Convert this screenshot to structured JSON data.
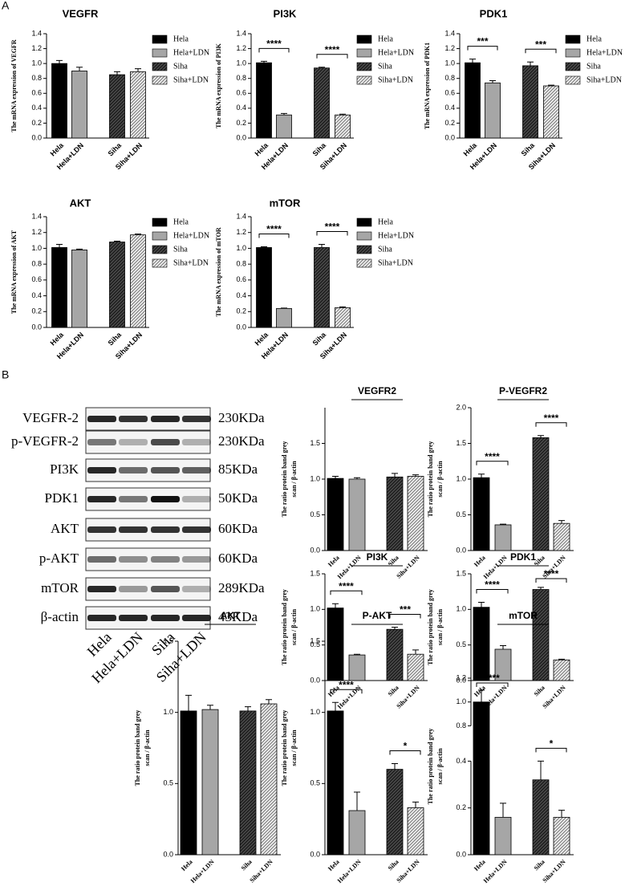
{
  "panels": [
    "A",
    "B"
  ],
  "styles": {
    "colors": [
      "#000000",
      "#a6a6a6",
      "#4a4a4a",
      "#f2f2f2"
    ],
    "hatched": [
      false,
      false,
      true,
      true
    ]
  },
  "blot": {
    "rows": [
      {
        "protein": "VEGFR-2",
        "size": "230KDa"
      },
      {
        "protein": "p-VEGFR-2",
        "size": "230KDa"
      },
      {
        "protein": "PI3K",
        "size": "85KDa"
      },
      {
        "protein": "PDK1",
        "size": "50KDa"
      },
      {
        "protein": "AKT",
        "size": "60KDa"
      },
      {
        "protein": "p-AKT",
        "size": "60KDa"
      },
      {
        "protein": "mTOR",
        "size": "289KDa"
      },
      {
        "protein": "β-actin",
        "size": "43KDa"
      }
    ],
    "lanes": [
      "Hela",
      "Hela+LDN",
      "Siha",
      "Siha+LDN"
    ]
  },
  "chart_data": [
    {
      "type": "bar",
      "title": "VEGFR",
      "ylabel": [
        "The mRNA expression of VEGFR"
      ],
      "categories": [
        "Hela",
        "Hela+LDN",
        "Siha",
        "Siha+LDN"
      ],
      "values": [
        1.0,
        0.9,
        0.85,
        0.89
      ],
      "errors": [
        0.04,
        0.05,
        0.04,
        0.04
      ],
      "ylim": [
        0,
        1.4
      ],
      "yticks": [
        {
          "value": 0,
          "label": "0.0"
        },
        0.2,
        0.4,
        0.6,
        0.8,
        {
          "value": 1,
          "label": "1.0"
        },
        1.2,
        1.4
      ],
      "legend": [
        "Hela",
        "Hela+LDN",
        "Siha",
        "Siha+LDN"
      ]
    },
    {
      "type": "bar",
      "title": "PI3K",
      "ylabel": [
        "The mRNA expression of PI3K"
      ],
      "categories": [
        "Hela",
        "Hela+LDN",
        "Siha",
        "Siha+LDN"
      ],
      "values": [
        1.01,
        0.31,
        0.94,
        0.31
      ],
      "errors": [
        0.02,
        0.02,
        0.01,
        0.01
      ],
      "ylim": [
        0,
        1.4
      ],
      "yticks": [
        {
          "value": 0,
          "label": "0.0"
        },
        0.2,
        0.4,
        0.6,
        0.8,
        {
          "value": 1,
          "label": "1.0"
        },
        1.2,
        1.4
      ],
      "legend": [
        "Hela",
        "Hela+LDN",
        "Siha",
        "Siha+LDN"
      ],
      "significance": [
        {
          "between": [
            0,
            1
          ],
          "label": "****"
        },
        {
          "between": [
            2,
            3
          ],
          "label": "****"
        }
      ]
    },
    {
      "type": "bar",
      "title": "PDK1",
      "ylabel": [
        "The mRNA expression of PDK1"
      ],
      "categories": [
        "Hela",
        "Hela+LDN",
        "Siha",
        "Siha+LDN"
      ],
      "values": [
        1.01,
        0.74,
        0.97,
        0.7
      ],
      "errors": [
        0.05,
        0.03,
        0.05,
        0.01
      ],
      "ylim": [
        0,
        1.4
      ],
      "yticks": [
        {
          "value": 0,
          "label": "0.0"
        },
        0.2,
        0.4,
        0.6,
        0.8,
        {
          "value": 1,
          "label": "1.0"
        },
        1.2,
        1.4
      ],
      "legend": [
        "Hela",
        "Hela+LDN",
        "Siha",
        "Siha+LDN"
      ],
      "significance": [
        {
          "between": [
            0,
            1
          ],
          "label": "***"
        },
        {
          "between": [
            2,
            3
          ],
          "label": "***"
        }
      ]
    },
    {
      "type": "bar",
      "title": "AKT",
      "ylabel": [
        "The mRNA expression of AKT"
      ],
      "categories": [
        "Hela",
        "Hela+LDN",
        "Siha",
        "Siha+LDN"
      ],
      "values": [
        1.01,
        0.98,
        1.08,
        1.17
      ],
      "errors": [
        0.04,
        0.01,
        0.01,
        0.01
      ],
      "ylim": [
        0,
        1.4
      ],
      "yticks": [
        {
          "value": 0,
          "label": "0.0"
        },
        0.2,
        0.4,
        0.6,
        0.8,
        {
          "value": 1,
          "label": "1.0"
        },
        1.2,
        1.4
      ],
      "legend": [
        "Hela",
        "Hela+LDN",
        "Siha",
        "Siha+LDN"
      ]
    },
    {
      "type": "bar",
      "title": "mTOR",
      "ylabel": [
        "The mRNA expression of mTOR"
      ],
      "categories": [
        "Hela",
        "Hela+LDN",
        "Siha",
        "Siha+LDN"
      ],
      "values": [
        1.01,
        0.24,
        1.01,
        0.25
      ],
      "errors": [
        0.01,
        0.005,
        0.04,
        0.01
      ],
      "ylim": [
        0,
        1.4
      ],
      "yticks": [
        {
          "value": 0,
          "label": "0.0"
        },
        0.2,
        0.4,
        0.6,
        0.8,
        {
          "value": 1,
          "label": "1.0"
        },
        1.2,
        1.4
      ],
      "legend": [
        "Hela",
        "Hela+LDN",
        "Siha",
        "Siha+LDN"
      ],
      "significance": [
        {
          "between": [
            0,
            1
          ],
          "label": "****"
        },
        {
          "between": [
            2,
            3
          ],
          "label": "****"
        }
      ]
    },
    {
      "type": "bar",
      "title": "VEGFR2",
      "ylabel": [
        "The ratio protein band grey",
        "scan / β-actin"
      ],
      "categories": [
        "Hela",
        "Hela+LDN",
        "Siha",
        "Siha+LDN"
      ],
      "values": [
        1.01,
        1.0,
        1.03,
        1.04
      ],
      "errors": [
        0.03,
        0.02,
        0.05,
        0.02
      ],
      "ylim": [
        0,
        2
      ],
      "yticks": [
        {
          "value": 0,
          "label": "0.0"
        },
        0.5,
        {
          "value": 1,
          "label": "1.0"
        },
        1.5
      ]
    },
    {
      "type": "bar",
      "title": "P-VEGFR2",
      "ylabel": [
        "The ratio protein band grey",
        "scan / β-actin"
      ],
      "categories": [
        "Hela",
        "Hela+LDN",
        "Siha",
        "Siha+LDN"
      ],
      "values": [
        1.02,
        0.36,
        1.58,
        0.38
      ],
      "errors": [
        0.05,
        0.01,
        0.03,
        0.04
      ],
      "ylim": [
        0,
        2
      ],
      "yticks": [
        {
          "value": 0,
          "label": "0.0"
        },
        0.5,
        {
          "value": 1,
          "label": "1.0"
        },
        1.5,
        {
          "value": 2,
          "label": "2.0"
        }
      ],
      "significance": [
        {
          "between": [
            0,
            1
          ],
          "label": "****"
        },
        {
          "between": [
            2,
            3
          ],
          "label": "****"
        }
      ]
    },
    {
      "type": "bar",
      "title": "PI3K",
      "ylabel": [
        "The ratio protein band grey",
        "scan / β-actin"
      ],
      "categories": [
        "Hela",
        "Hela+LDN",
        "Siha",
        "Siha+LDN"
      ],
      "values": [
        1.02,
        0.36,
        0.72,
        0.37
      ],
      "errors": [
        0.06,
        0.01,
        0.03,
        0.06
      ],
      "ylim": [
        0,
        1.5
      ],
      "yticks": [
        {
          "value": 0,
          "label": "0.0"
        },
        0.5,
        {
          "value": 1,
          "label": "1.0"
        },
        1.5
      ],
      "significance": [
        {
          "between": [
            0,
            1
          ],
          "label": "****"
        },
        {
          "between": [
            2,
            3
          ],
          "label": "***"
        }
      ]
    },
    {
      "type": "bar",
      "title": "PDK1",
      "ylabel": [
        "The ratio protein band grey",
        "scan / β-actin"
      ],
      "categories": [
        "Hela",
        "Hela+LDN",
        "Siha",
        "Siha+LDN"
      ],
      "values": [
        1.03,
        0.44,
        1.28,
        0.29
      ],
      "errors": [
        0.07,
        0.05,
        0.03,
        0.01
      ],
      "ylim": [
        0,
        1.5
      ],
      "yticks": [
        {
          "value": 0,
          "label": "0.0"
        },
        0.5,
        {
          "value": 1,
          "label": "1.0"
        },
        1.5
      ],
      "significance": [
        {
          "between": [
            0,
            1
          ],
          "label": "****"
        },
        {
          "between": [
            2,
            3
          ],
          "label": "****"
        }
      ]
    },
    {
      "type": "bar",
      "title": "AKT",
      "ylabel": [
        "The ratio protein band grey",
        "scan / β-actin"
      ],
      "categories": [
        "Hela",
        "Hela+LDN",
        "Siha",
        "Siha+LDN"
      ],
      "values": [
        1.01,
        1.02,
        1.01,
        1.06
      ],
      "errors": [
        0.11,
        0.03,
        0.03,
        0.03
      ],
      "ylim": [
        0,
        1.5
      ],
      "yticks": [
        {
          "value": 0,
          "label": "0.0"
        },
        0.5,
        {
          "value": 1,
          "label": "1.0"
        },
        1.5
      ]
    },
    {
      "type": "bar",
      "title": "P-AKT",
      "ylabel": [
        "The ratio protein band grey",
        "scan / β-actin"
      ],
      "categories": [
        "Hela",
        "Hela+LDN",
        "Siha",
        "Siha+LDN"
      ],
      "values": [
        1.01,
        0.31,
        0.6,
        0.33
      ],
      "errors": [
        0.06,
        0.13,
        0.04,
        0.04
      ],
      "ylim": [
        0,
        1.5
      ],
      "yticks": [
        {
          "value": 0,
          "label": "0.0"
        },
        0.5,
        {
          "value": 1,
          "label": "1.0"
        },
        1.5
      ],
      "significance": [
        {
          "between": [
            0,
            1
          ],
          "label": "****"
        },
        {
          "between": [
            2,
            3
          ],
          "label": "*"
        }
      ]
    },
    {
      "type": "bar",
      "title": "mTOR",
      "ylabel": [
        "The ratio protein band grey",
        "scan / β-actin"
      ],
      "categories": [
        "Hela",
        "Hela+LDN",
        "Siha",
        "Siha+LDN"
      ],
      "values": [
        1.0,
        0.16,
        0.32,
        0.16
      ],
      "errors": [
        0.1,
        0.06,
        0.08,
        0.03
      ],
      "ylim": [
        0,
        1.2
      ],
      "ybreak": [
        0.4,
        0.8
      ],
      "yticks": [
        {
          "value": 0,
          "label": "0.0"
        },
        0.2,
        0.4,
        0.8,
        {
          "value": 1,
          "label": "1.0"
        },
        1.2
      ],
      "significance": [
        {
          "between": [
            0,
            1
          ],
          "label": "****"
        },
        {
          "between": [
            2,
            3
          ],
          "label": "*"
        }
      ]
    }
  ]
}
